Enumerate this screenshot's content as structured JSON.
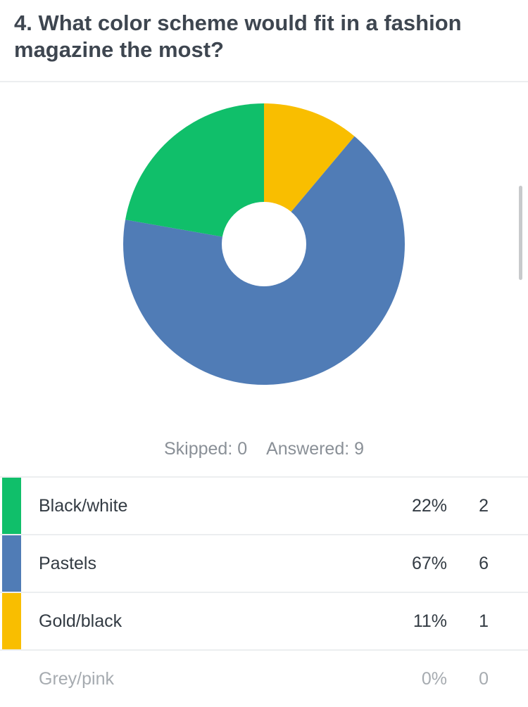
{
  "question": {
    "title": "4. What color scheme would fit in a fashion magazine the most?"
  },
  "summary": {
    "skipped": "Skipped: 0",
    "answered": "Answered: 9"
  },
  "chart_data": {
    "type": "pie",
    "categories": [
      "Black/white",
      "Pastels",
      "Gold/black",
      "Grey/pink"
    ],
    "values": [
      2,
      6,
      1,
      0
    ],
    "percentages": [
      "22%",
      "67%",
      "11%",
      "0%"
    ],
    "colors": [
      "#10bf6a",
      "#507cb6",
      "#f9be00",
      "#a6abb0"
    ],
    "style": "donut",
    "legend": "table-below"
  },
  "rows": [
    {
      "label": "Black/white",
      "pct": "22%",
      "count": "2",
      "color": "#10bf6a"
    },
    {
      "label": "Pastels",
      "pct": "67%",
      "count": "6",
      "color": "#507cb6"
    },
    {
      "label": "Gold/black",
      "pct": "11%",
      "count": "1",
      "color": "#f9be00"
    },
    {
      "label": "Grey/pink",
      "pct": "0%",
      "count": "0",
      "color": ""
    }
  ]
}
